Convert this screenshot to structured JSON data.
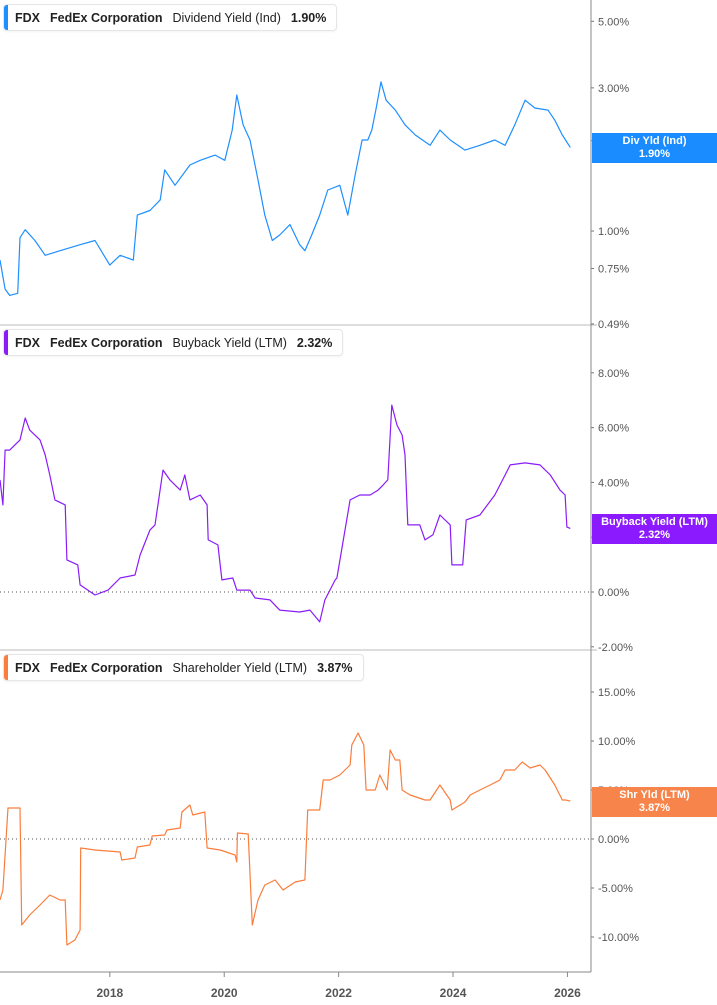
{
  "ticker": "FDX",
  "company": "FedEx Corporation",
  "x_tick_labels": [
    "2018",
    "2020",
    "2022",
    "2024",
    "2026"
  ],
  "x_tick_years": [
    2018,
    2020,
    2022,
    2024,
    2026
  ],
  "chart_data": [
    {
      "type": "line",
      "legend": {
        "series": "Dividend Yield (Ind)",
        "value": "1.90%"
      },
      "tag": {
        "label": "Div Yld (Ind)",
        "value": "1.90%"
      },
      "color": "#1e8fff",
      "scale": "log",
      "ylim": [
        0.49,
        5.6
      ],
      "y_ticks": [
        5,
        3,
        2,
        1,
        0.75,
        0.49
      ],
      "y_tick_labels": [
        "5.00%",
        "3.00%",
        "2.00%",
        "1.00%",
        "0.75%",
        "0.49%"
      ],
      "x": [
        2016.08,
        2016.17,
        2016.25,
        2016.39,
        2016.43,
        2016.52,
        2016.69,
        2016.87,
        2017.13,
        2017.48,
        2017.74,
        2018.0,
        2018.18,
        2018.41,
        2018.48,
        2018.7,
        2018.88,
        2018.96,
        2019.14,
        2019.4,
        2019.58,
        2019.84,
        2020.01,
        2020.14,
        2020.22,
        2020.33,
        2020.45,
        2020.59,
        2020.71,
        2020.84,
        2020.97,
        2021.15,
        2021.32,
        2021.41,
        2021.53,
        2021.67,
        2021.81,
        2022.02,
        2022.16,
        2022.29,
        2022.41,
        2022.51,
        2022.58,
        2022.65,
        2022.74,
        2022.83,
        2022.99,
        2023.16,
        2023.34,
        2023.6,
        2023.77,
        2023.95,
        2024.21,
        2024.47,
        2024.73,
        2024.91,
        2025.08,
        2025.26,
        2025.43,
        2025.66,
        2025.78,
        2025.91,
        2026.05
      ],
      "y": [
        0.8,
        0.64,
        0.61,
        0.62,
        0.95,
        1.01,
        0.93,
        0.83,
        0.86,
        0.9,
        0.93,
        0.77,
        0.83,
        0.8,
        1.13,
        1.17,
        1.27,
        1.6,
        1.42,
        1.66,
        1.72,
        1.79,
        1.72,
        2.17,
        2.84,
        2.26,
        2.01,
        1.48,
        1.13,
        0.93,
        0.97,
        1.05,
        0.9,
        0.86,
        0.97,
        1.13,
        1.37,
        1.42,
        1.13,
        1.54,
        2.01,
        2.01,
        2.17,
        2.53,
        3.14,
        2.73,
        2.53,
        2.26,
        2.09,
        1.93,
        2.17,
        2.01,
        1.86,
        1.93,
        2.01,
        1.93,
        2.26,
        2.73,
        2.57,
        2.53,
        2.34,
        2.09,
        1.9
      ]
    },
    {
      "type": "line",
      "legend": {
        "series": "Buyback Yield (LTM)",
        "value": "2.32%"
      },
      "tag": {
        "label": "Buyback Yield (LTM)",
        "value": "2.32%"
      },
      "color": "#8a1cf7",
      "scale": "linear",
      "ylim": [
        -2.0,
        8.8
      ],
      "y_ticks": [
        8,
        6,
        4,
        2,
        0,
        -2
      ],
      "y_tick_labels": [
        "8.00%",
        "6.00%",
        "4.00%",
        "2.00%",
        "0.00%",
        "-2.00%"
      ],
      "zero_line": true,
      "x": [
        2016.08,
        2016.13,
        2016.17,
        2016.25,
        2016.43,
        2016.52,
        2016.6,
        2016.78,
        2016.87,
        2016.95,
        2017.04,
        2017.22,
        2017.25,
        2017.44,
        2017.48,
        2017.74,
        2017.97,
        2018.18,
        2018.44,
        2018.53,
        2018.7,
        2018.79,
        2018.93,
        2019.05,
        2019.23,
        2019.31,
        2019.4,
        2019.58,
        2019.7,
        2019.72,
        2019.89,
        2019.96,
        2020.15,
        2020.22,
        2020.45,
        2020.54,
        2020.8,
        2020.97,
        2021.32,
        2021.5,
        2021.67,
        2021.76,
        2021.94,
        2021.97,
        2022.2,
        2022.37,
        2022.55,
        2022.69,
        2022.78,
        2022.86,
        2022.93,
        2023.02,
        2023.11,
        2023.16,
        2023.21,
        2023.42,
        2023.51,
        2023.65,
        2023.77,
        2023.95,
        2023.98,
        2024.17,
        2024.23,
        2024.47,
        2024.73,
        2024.91,
        2025.0,
        2025.26,
        2025.52,
        2025.7,
        2025.87,
        2025.96,
        2025.99,
        2026.05
      ],
      "y": [
        4.09,
        3.18,
        5.18,
        5.18,
        5.55,
        6.35,
        5.91,
        5.55,
        5.0,
        4.27,
        3.36,
        3.18,
        1.17,
        0.99,
        0.26,
        -0.11,
        0.07,
        0.51,
        0.62,
        1.35,
        2.26,
        2.45,
        4.45,
        4.09,
        3.72,
        4.27,
        3.36,
        3.54,
        3.18,
        1.9,
        1.72,
        0.44,
        0.51,
        0.07,
        0.07,
        -0.22,
        -0.29,
        -0.66,
        -0.73,
        -0.66,
        -1.09,
        -0.29,
        0.44,
        0.51,
        3.36,
        3.54,
        3.54,
        3.72,
        3.91,
        4.09,
        6.82,
        6.09,
        5.73,
        5.0,
        2.45,
        2.45,
        1.9,
        2.09,
        2.81,
        2.45,
        0.99,
        0.99,
        2.63,
        2.81,
        3.54,
        4.27,
        4.64,
        4.71,
        4.64,
        4.27,
        3.72,
        3.54,
        2.37,
        2.32
      ]
    },
    {
      "type": "line",
      "legend": {
        "series": "Shareholder Yield (LTM)",
        "value": "3.87%"
      },
      "tag": {
        "label": "Shr Yld (LTM)",
        "value": "3.87%"
      },
      "color": "#fa7d3c",
      "scale": "linear",
      "ylim": [
        -13.5,
        19
      ],
      "y_ticks": [
        15,
        10,
        5,
        0,
        -5,
        -10
      ],
      "y_tick_labels": [
        "15.00%",
        "10.00%",
        "5.00%",
        "0.00%",
        "-5.00%",
        "-10.00%"
      ],
      "zero_line": true,
      "x": [
        2016.08,
        2016.13,
        2016.22,
        2016.43,
        2016.46,
        2016.6,
        2016.78,
        2016.95,
        2017.13,
        2017.22,
        2017.25,
        2017.39,
        2017.48,
        2017.49,
        2017.74,
        2018.18,
        2018.21,
        2018.44,
        2018.48,
        2018.7,
        2018.74,
        2018.96,
        2019.0,
        2019.23,
        2019.26,
        2019.4,
        2019.45,
        2019.66,
        2019.7,
        2019.93,
        2020.19,
        2020.22,
        2020.23,
        2020.42,
        2020.49,
        2020.59,
        2020.71,
        2020.89,
        2021.03,
        2021.24,
        2021.41,
        2021.46,
        2021.67,
        2021.73,
        2021.85,
        2022.02,
        2022.2,
        2022.23,
        2022.34,
        2022.44,
        2022.48,
        2022.64,
        2022.72,
        2022.85,
        2022.9,
        2022.99,
        2023.07,
        2023.11,
        2023.25,
        2023.51,
        2023.6,
        2023.77,
        2023.95,
        2023.98,
        2024.21,
        2024.3,
        2024.47,
        2024.65,
        2024.82,
        2024.91,
        2025.08,
        2025.21,
        2025.35,
        2025.52,
        2025.61,
        2025.78,
        2025.91,
        2025.97,
        2026.05
      ],
      "y": [
        -6.22,
        -5.2,
        3.16,
        3.16,
        -8.78,
        -7.76,
        -6.73,
        -5.71,
        -6.22,
        -6.22,
        -10.82,
        -10.31,
        -9.29,
        -0.92,
        -1.12,
        -1.33,
        -2.14,
        -1.94,
        -0.82,
        -0.61,
        0.31,
        0.41,
        0.92,
        1.12,
        2.76,
        3.47,
        2.45,
        2.76,
        -0.92,
        -1.12,
        -1.63,
        -2.35,
        0.61,
        0.51,
        -8.78,
        -6.22,
        -4.69,
        -4.18,
        -5.2,
        -4.39,
        -4.18,
        2.96,
        2.96,
        6.02,
        6.02,
        6.53,
        7.55,
        9.59,
        10.82,
        9.59,
        5.0,
        5.0,
        6.53,
        5.0,
        9.08,
        8.06,
        8.06,
        5.0,
        4.49,
        3.98,
        3.98,
        5.51,
        3.98,
        2.96,
        3.78,
        4.49,
        5.0,
        5.51,
        6.02,
        7.04,
        7.04,
        7.86,
        7.24,
        7.55,
        7.04,
        5.51,
        3.98,
        3.98,
        3.87
      ]
    }
  ]
}
